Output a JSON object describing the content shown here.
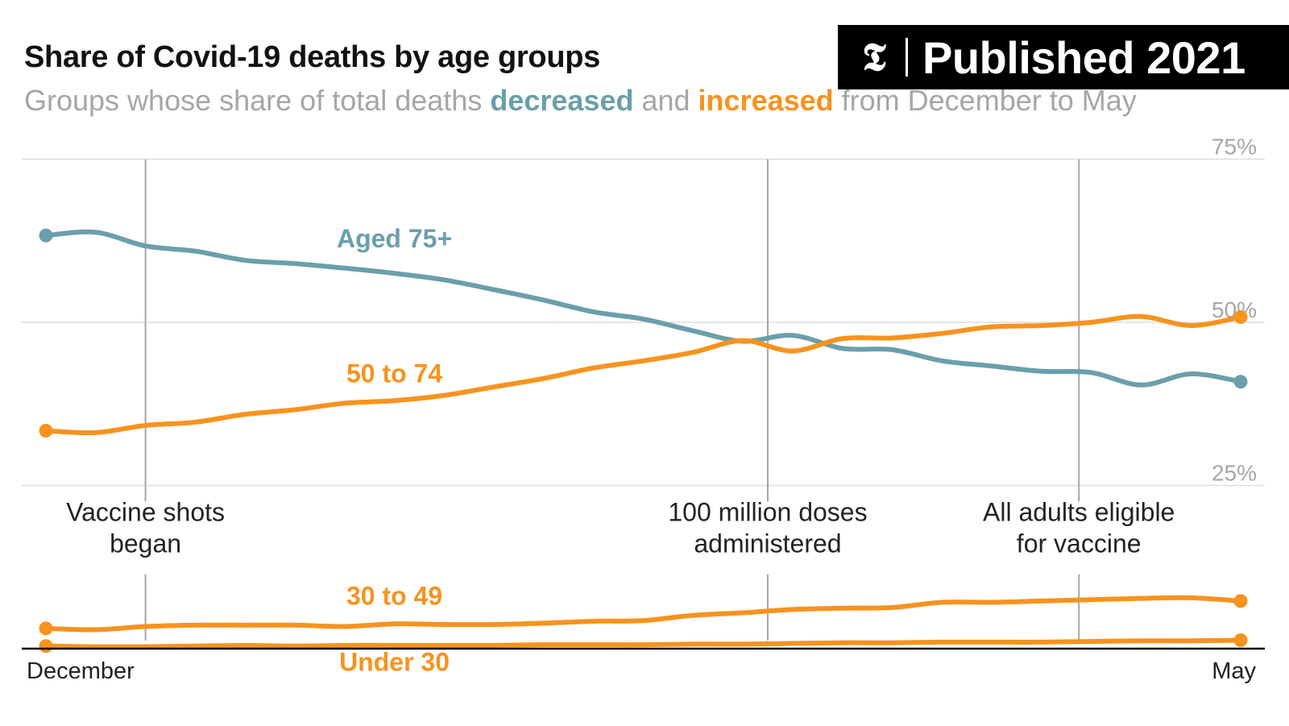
{
  "header": {
    "title": "Share of Covid-19 deaths by age groups",
    "subtitle_pre": "Groups whose share of total deaths ",
    "subtitle_decreased": "decreased",
    "subtitle_mid": " and ",
    "subtitle_increased": "increased",
    "subtitle_post": " from December to May"
  },
  "badge": {
    "logo": "𝕿",
    "text": "Published 2021"
  },
  "colors": {
    "decreased": "#6a9fab",
    "increased": "#f7931e",
    "grid": "#dddddd",
    "event_line": "#a6a6a6",
    "baseline": "#000000"
  },
  "chart_data": {
    "type": "line",
    "title": "Share of Covid-19 deaths by age groups",
    "x_labels": [
      "December",
      "May"
    ],
    "y_ticks": [
      {
        "value": 75,
        "label": "75%"
      },
      {
        "value": 50,
        "label": "50%"
      },
      {
        "value": 25,
        "label": "25%"
      }
    ],
    "ylim": [
      0,
      75
    ],
    "xlim": [
      0,
      24
    ],
    "events": [
      {
        "x": 2,
        "lines": [
          "Vaccine shots",
          "began"
        ]
      },
      {
        "x": 14.5,
        "lines": [
          "100 million doses",
          "administered"
        ]
      },
      {
        "x": 20.75,
        "lines": [
          "All adults eligible",
          "for vaccine"
        ]
      }
    ],
    "series": [
      {
        "name": "Aged 75+",
        "trend": "decreased",
        "label_at": {
          "x": 7,
          "y": 61.5
        },
        "values": [
          63.3,
          63.8,
          61.7,
          60.9,
          59.5,
          59.0,
          58.3,
          57.5,
          56.5,
          55.0,
          53.4,
          51.6,
          50.5,
          48.7,
          47.1,
          48.0,
          46.0,
          45.8,
          44.1,
          43.3,
          42.5,
          42.3,
          40.4,
          42.1,
          40.9
        ]
      },
      {
        "name": "50 to 74",
        "trend": "increased",
        "label_at": {
          "x": 7,
          "y": 40.8
        },
        "values": [
          33.4,
          33.1,
          34.2,
          34.7,
          35.9,
          36.6,
          37.6,
          38.0,
          38.8,
          40.1,
          41.4,
          43.0,
          44.1,
          45.4,
          47.2,
          45.6,
          47.5,
          47.6,
          48.3,
          49.3,
          49.5,
          50.0,
          50.9,
          49.5,
          50.8
        ]
      },
      {
        "name": "30 to 49",
        "trend": "increased",
        "label_at": {
          "x": 7,
          "y": 6.7
        },
        "values": [
          3.1,
          2.9,
          3.4,
          3.6,
          3.6,
          3.6,
          3.4,
          3.8,
          3.7,
          3.7,
          3.9,
          4.2,
          4.3,
          5.1,
          5.5,
          6.0,
          6.2,
          6.3,
          7.1,
          7.1,
          7.3,
          7.5,
          7.7,
          7.8,
          7.3
        ]
      },
      {
        "name": "Under 30",
        "trend": "increased",
        "label_at": {
          "x": 7,
          "y": -3.4
        },
        "values": [
          0.4,
          0.3,
          0.3,
          0.4,
          0.5,
          0.4,
          0.5,
          0.5,
          0.5,
          0.5,
          0.6,
          0.6,
          0.6,
          0.7,
          0.7,
          0.8,
          0.9,
          0.9,
          1.0,
          1.0,
          1.0,
          1.1,
          1.2,
          1.2,
          1.3
        ]
      }
    ]
  }
}
